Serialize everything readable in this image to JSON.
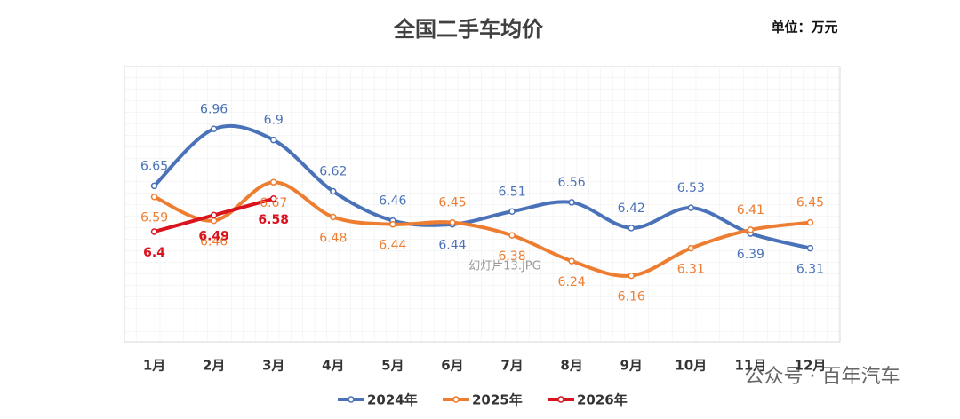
{
  "chart_data": {
    "type": "line",
    "title": "全国二手车均价",
    "unit_label": "单位：万元",
    "categories": [
      "1月",
      "2月",
      "3月",
      "4月",
      "5月",
      "6月",
      "7月",
      "8月",
      "9月",
      "10月",
      "11月",
      "12月"
    ],
    "series": [
      {
        "name": "2024年",
        "color": "#4a72b8",
        "values": [
          6.65,
          6.96,
          6.9,
          6.62,
          6.46,
          6.44,
          6.51,
          6.56,
          6.42,
          6.53,
          6.39,
          6.31
        ]
      },
      {
        "name": "2025年",
        "color": "#ed7d31",
        "values": [
          6.59,
          6.46,
          6.67,
          6.48,
          6.44,
          6.45,
          6.38,
          6.24,
          6.16,
          6.31,
          6.41,
          6.45
        ]
      },
      {
        "name": "2026年",
        "color": "#d9141e",
        "values": [
          6.4,
          6.49,
          6.58,
          null,
          null,
          null,
          null,
          null,
          null,
          null,
          null,
          null
        ]
      }
    ],
    "ylim": [
      5.8,
      7.3
    ],
    "annotations": [
      "幻灯片13.JPG",
      "公众号 · 百年汽车"
    ]
  }
}
